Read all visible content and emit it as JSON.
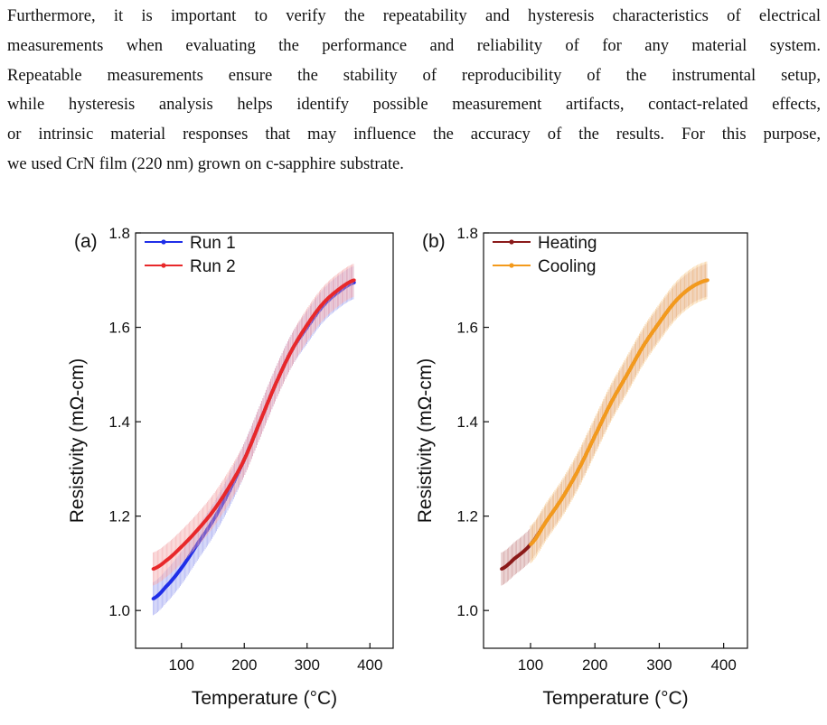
{
  "paragraph": {
    "lines": [
      "Furthermore, it is important to verify the repeatability and hysteresis characteristics of electrical",
      "measurements when evaluating the performance and reliability of for any material system.",
      "Repeatable measurements ensure the stability of reproducibility of the instrumental setup,",
      "while hysteresis analysis helps identify possible measurement artifacts, contact-related effects,",
      "or intrinsic material responses that may influence the accuracy of the results. For this purpose,",
      "we used CrN film (220 nm) grown on c-sapphire substrate."
    ]
  },
  "chart_data": [
    {
      "type": "line",
      "panel_label": "(a)",
      "xlabel": "Temperature (°C)",
      "ylabel": "Resistivity (mΩ-cm)",
      "xlim": [
        27,
        437
      ],
      "ylim": [
        0.92,
        1.8
      ],
      "xticks": [
        100,
        200,
        300,
        400
      ],
      "yticks": [
        1.0,
        1.2,
        1.4,
        1.6,
        1.8
      ],
      "legend_position": "top-left",
      "error_bars": true,
      "series": [
        {
          "name": "Run 1",
          "color": "#1f2ee8",
          "error_color": "#9aa0f0",
          "x": [
            55,
            75,
            100,
            125,
            150,
            175,
            200,
            225,
            250,
            275,
            300,
            325,
            350,
            375
          ],
          "y": [
            1.025,
            1.05,
            1.09,
            1.14,
            1.19,
            1.25,
            1.32,
            1.4,
            1.48,
            1.55,
            1.6,
            1.645,
            1.675,
            1.695
          ],
          "error": 0.035
        },
        {
          "name": "Run 2",
          "color": "#e8282a",
          "error_color": "#f4a4a6",
          "x": [
            55,
            75,
            100,
            125,
            150,
            175,
            200,
            225,
            250,
            275,
            300,
            325,
            350,
            375
          ],
          "y": [
            1.088,
            1.105,
            1.135,
            1.17,
            1.21,
            1.26,
            1.32,
            1.4,
            1.48,
            1.55,
            1.605,
            1.65,
            1.68,
            1.7
          ],
          "error": 0.035
        }
      ]
    },
    {
      "type": "line",
      "panel_label": "(b)",
      "xlabel": "Temperature (°C)",
      "ylabel": "Resistivity (mΩ-cm)",
      "xlim": [
        27,
        437
      ],
      "ylim": [
        0.92,
        1.8
      ],
      "xticks": [
        100,
        200,
        300,
        400
      ],
      "yticks": [
        1.0,
        1.2,
        1.4,
        1.6,
        1.8
      ],
      "legend_position": "top-left",
      "error_bars": true,
      "series": [
        {
          "name": "Heating",
          "color": "#8b1a1a",
          "error_color": "#c98c8c",
          "x": [
            55,
            75,
            100,
            125,
            150,
            175,
            200,
            225,
            250,
            275,
            300,
            325,
            350,
            375
          ],
          "y": [
            1.088,
            1.11,
            1.14,
            1.19,
            1.24,
            1.3,
            1.37,
            1.44,
            1.5,
            1.56,
            1.61,
            1.655,
            1.685,
            1.7
          ],
          "error": 0.035
        },
        {
          "name": "Cooling",
          "color": "#f39a1c",
          "error_color": "#f7c98a",
          "x": [
            100,
            125,
            150,
            175,
            200,
            225,
            250,
            275,
            300,
            325,
            350,
            375
          ],
          "y": [
            1.14,
            1.19,
            1.24,
            1.3,
            1.37,
            1.44,
            1.5,
            1.56,
            1.61,
            1.655,
            1.685,
            1.7
          ],
          "error": 0.04
        }
      ]
    }
  ]
}
